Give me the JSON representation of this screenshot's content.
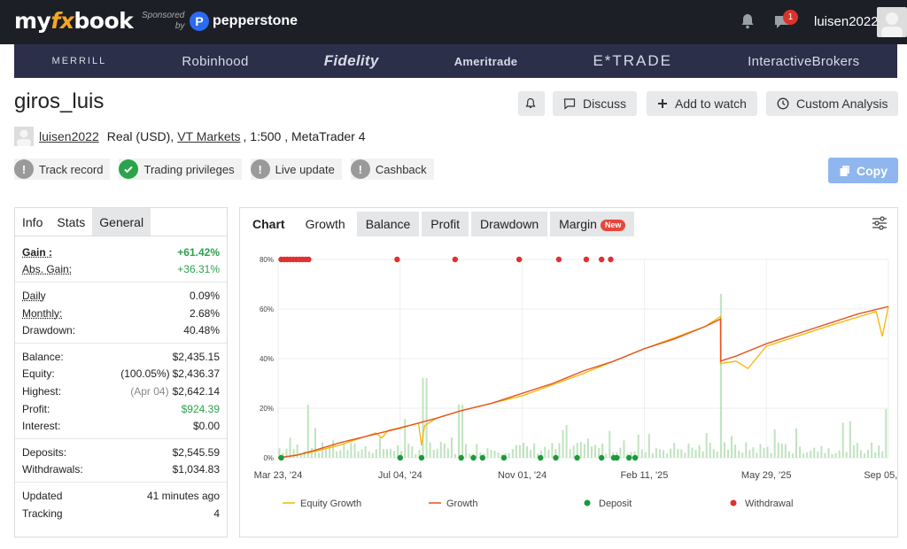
{
  "topbar": {
    "logo_my": "my",
    "logo_fx": "fx",
    "logo_book": "book",
    "sponsored": "Sponsored",
    "by": "by",
    "sponsor_name": "pepperstone",
    "chat_count": "1",
    "username": "luisen2022"
  },
  "brokers": [
    "MERRILL",
    "Robinhood",
    "Fidelity",
    "Ameritrade",
    "E*TRADE",
    "InteractiveBrokers"
  ],
  "account": {
    "title": "giros_luis",
    "owner": "luisen2022",
    "type": "Real (USD),",
    "broker": "VT Markets",
    "leverage": ", 1:500 , MetaTrader 4"
  },
  "actions": {
    "discuss": "Discuss",
    "watch": "Add to watch",
    "analysis": "Custom Analysis",
    "copy": "Copy"
  },
  "badges": [
    {
      "label": "Track record",
      "status": "unverified"
    },
    {
      "label": "Trading privileges",
      "status": "verified"
    },
    {
      "label": "Live update",
      "status": "unverified"
    },
    {
      "label": "Cashback",
      "status": "unverified"
    }
  ],
  "colors": {
    "verified": "#2aa34a",
    "unverified": "#9a9a9a",
    "equity": "#f5b700",
    "growth": "#e8531f",
    "deposit": "#1a9a3a",
    "withdrawal": "#e03030",
    "volume": "#bfe3bf"
  },
  "stats_tabs": [
    "Info",
    "Stats",
    "General"
  ],
  "stats": {
    "gain_label": "Gain :",
    "gain": "+61.42%",
    "abs_gain_label": "Abs. Gain:",
    "abs_gain": "+36.31%",
    "daily_label": "Daily",
    "daily": "0.09%",
    "monthly_label": "Monthly:",
    "monthly": "2.68%",
    "drawdown_label": "Drawdown:",
    "drawdown": "40.48%",
    "balance_label": "Balance:",
    "balance": "$2,435.15",
    "equity_label": "Equity:",
    "equity_pct": "(100.05%)",
    "equity": "$2,436.37",
    "highest_label": "Highest:",
    "highest_date": "(Apr 04)",
    "highest": "$2,642.14",
    "profit_label": "Profit:",
    "profit": "$924.39",
    "interest_label": "Interest:",
    "interest": "$0.00",
    "deposits_label": "Deposits:",
    "deposits": "$2,545.59",
    "withdrawals_label": "Withdrawals:",
    "withdrawals": "$1,034.83",
    "updated_label": "Updated",
    "updated": "41 minutes ago",
    "tracking_label": "Tracking",
    "tracking": "4"
  },
  "chart_tabs": {
    "chart": "Chart",
    "growth": "Growth",
    "balance": "Balance",
    "profit": "Profit",
    "drawdown": "Drawdown",
    "margin": "Margin",
    "new": "New"
  },
  "chart_data": {
    "type": "line",
    "x_ticks": [
      "Mar 23, '24",
      "Jul 04, '24",
      "Nov 01, '24",
      "Feb 11, '25",
      "May 29, '25",
      "Sep 05, '25"
    ],
    "y_ticks": [
      "0%",
      "20%",
      "40%",
      "60%",
      "80%"
    ],
    "ylim": [
      0,
      80
    ],
    "legend": [
      "Equity Growth",
      "Growth",
      "Deposit",
      "Withdrawal"
    ],
    "growth_series": {
      "name": "Growth",
      "x": [
        0,
        0.03,
        0.06,
        0.1,
        0.15,
        0.2,
        0.23,
        0.26,
        0.3,
        0.35,
        0.4,
        0.45,
        0.5,
        0.55,
        0.6,
        0.65,
        0.7,
        0.725,
        0.7251,
        0.75,
        0.8,
        0.85,
        0.9,
        0.95,
        1.0
      ],
      "y": [
        0,
        1,
        3,
        6,
        9,
        12,
        14,
        16,
        19,
        22,
        26,
        30,
        35,
        39,
        44,
        48,
        53,
        56,
        39,
        41,
        46,
        50,
        54,
        58,
        61
      ]
    },
    "equity_series": {
      "name": "Equity Growth",
      "x": [
        0,
        0.05,
        0.1,
        0.16,
        0.17,
        0.18,
        0.23,
        0.235,
        0.24,
        0.26,
        0.3,
        0.4,
        0.5,
        0.6,
        0.7,
        0.725,
        0.7251,
        0.75,
        0.77,
        0.8,
        0.9,
        0.98,
        0.99,
        1.0
      ],
      "y": [
        0,
        2,
        5,
        10,
        8,
        11,
        14,
        5,
        13,
        16,
        19,
        25,
        34,
        44,
        53,
        57,
        38,
        39,
        36,
        45,
        53,
        59,
        49,
        61
      ]
    },
    "deposits_x": [
      0.005,
      0.2,
      0.235,
      0.3,
      0.32,
      0.335,
      0.37,
      0.43,
      0.455,
      0.49,
      0.53,
      0.55,
      0.555,
      0.575,
      0.585
    ],
    "withdrawals_x": [
      0.005,
      0.01,
      0.015,
      0.02,
      0.025,
      0.03,
      0.035,
      0.04,
      0.045,
      0.05,
      0.195,
      0.29,
      0.395,
      0.46,
      0.505,
      0.53,
      0.545
    ]
  }
}
